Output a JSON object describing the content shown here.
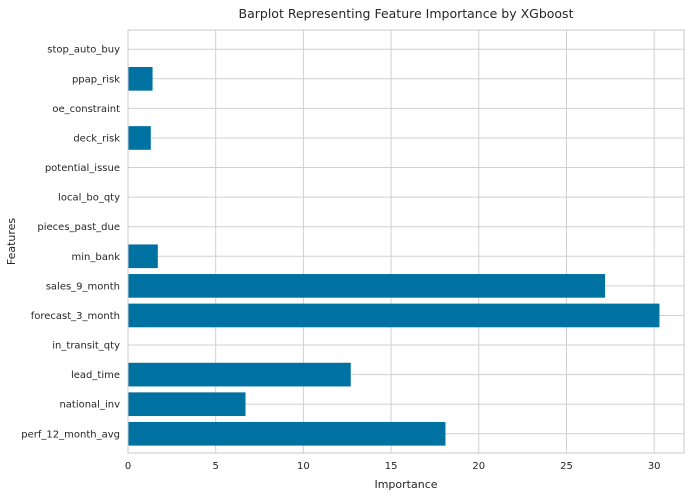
{
  "chart_data": {
    "type": "bar",
    "orientation": "horizontal",
    "title": "Barplot Representing Feature Importance by XGboost",
    "xlabel": "Importance",
    "ylabel": "Features",
    "categories": [
      "perf_12_month_avg",
      "national_inv",
      "lead_time",
      "in_transit_qty",
      "forecast_3_month",
      "sales_9_month",
      "min_bank",
      "pieces_past_due",
      "local_bo_qty",
      "potential_issue",
      "deck_risk",
      "oe_constraint",
      "ppap_risk",
      "stop_auto_buy"
    ],
    "values": [
      18.1,
      6.7,
      12.7,
      0,
      30.3,
      27.2,
      1.7,
      0,
      0,
      0,
      1.3,
      0,
      1.4,
      0
    ],
    "xlim": [
      0,
      31.7
    ],
    "xticks": [
      0,
      5,
      10,
      15,
      20,
      25,
      30
    ],
    "xtick_labels": [
      "0",
      "5",
      "10",
      "15",
      "20",
      "25",
      "30"
    ],
    "grid": true,
    "colors": {
      "bar": "#0072a2",
      "grid": "#d0d0d0",
      "spine": "#c8c8c8",
      "text": "#262626",
      "background": "#ffffff"
    }
  }
}
